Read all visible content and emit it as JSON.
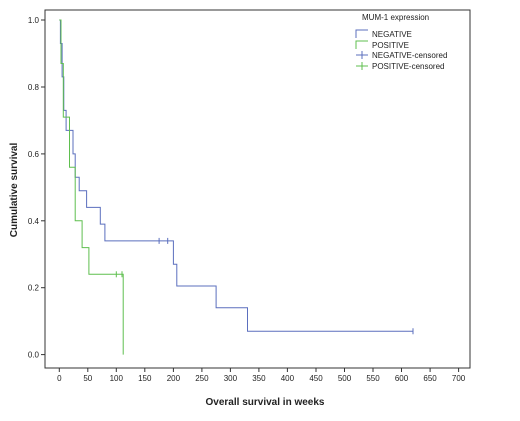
{
  "chart_data": {
    "type": "line",
    "title": "",
    "xlabel": "Overall survival in weeks",
    "ylabel": "Cumulative survival",
    "xlim": [
      -25,
      720
    ],
    "ylim": [
      -0.04,
      1.03
    ],
    "xticks": [
      0,
      50,
      100,
      150,
      200,
      250,
      300,
      350,
      400,
      450,
      500,
      550,
      600,
      650,
      700
    ],
    "yticks": [
      0.0,
      0.2,
      0.4,
      0.6,
      0.8,
      1.0
    ],
    "ytick_labels": [
      "0.0",
      "0.2",
      "0.4",
      "0.6",
      "0.8",
      "1.0"
    ],
    "grid": false,
    "legend": {
      "title": "MUM-1 expression",
      "placement": "top-right",
      "entries": [
        "NEGATIVE",
        "POSITIVE",
        "NEGATIVE-censored",
        "POSITIVE-censored"
      ]
    },
    "series": [
      {
        "name": "NEGATIVE",
        "color": "#5b6fbe",
        "steps": [
          [
            0,
            1.0
          ],
          [
            2,
            0.93
          ],
          [
            5,
            0.83
          ],
          [
            8,
            0.73
          ],
          [
            12,
            0.67
          ],
          [
            24,
            0.6
          ],
          [
            28,
            0.53
          ],
          [
            35,
            0.49
          ],
          [
            48,
            0.44
          ],
          [
            72,
            0.39
          ],
          [
            80,
            0.34
          ],
          [
            200,
            0.27
          ],
          [
            206,
            0.205
          ],
          [
            275,
            0.14
          ],
          [
            330,
            0.07
          ],
          [
            620,
            0.07
          ]
        ],
        "censored": [
          [
            175,
            0.34
          ],
          [
            190,
            0.34
          ],
          [
            620,
            0.07
          ]
        ]
      },
      {
        "name": "POSITIVE",
        "color": "#5fbf4f",
        "steps": [
          [
            0,
            1.0
          ],
          [
            3,
            0.87
          ],
          [
            7,
            0.71
          ],
          [
            18,
            0.56
          ],
          [
            28,
            0.4
          ],
          [
            40,
            0.32
          ],
          [
            52,
            0.24
          ],
          [
            112,
            0.0
          ]
        ],
        "censored": [
          [
            100,
            0.24
          ],
          [
            110,
            0.24
          ]
        ]
      }
    ]
  }
}
